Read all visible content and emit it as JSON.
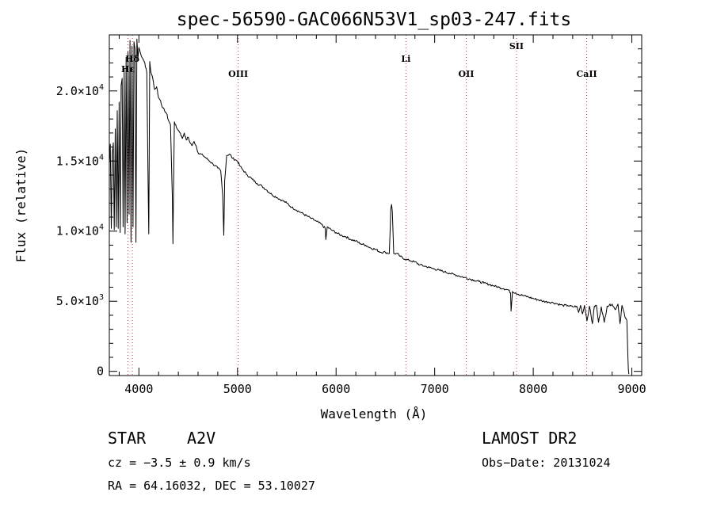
{
  "chart_data": {
    "type": "line",
    "title": "spec-56590-GAC066N53V1_sp03-247.fits",
    "xlabel": "Wavelength (Å)",
    "ylabel": "Flux (relative)",
    "xlim": [
      3700,
      9100
    ],
    "ylim": [
      -300,
      24000
    ],
    "xticks": [
      4000,
      5000,
      6000,
      7000,
      8000,
      9000
    ],
    "xtick_labels": [
      "4000",
      "5000",
      "6000",
      "7000",
      "8000",
      "9000"
    ],
    "yticks": [
      0,
      5000,
      10000,
      15000,
      20000
    ],
    "ytick_labels": [
      {
        "mantissa": "0",
        "exp": ""
      },
      {
        "mantissa": "5.0×10",
        "exp": "3"
      },
      {
        "mantissa": "1.0×10",
        "exp": "4"
      },
      {
        "mantissa": "1.5×10",
        "exp": "4"
      },
      {
        "mantissa": "2.0×10",
        "exp": "4"
      }
    ],
    "grid": false,
    "line_markers": [
      {
        "name": "Hε",
        "wavelength": 3889,
        "label_row": 2
      },
      {
        "name": "Hδ",
        "wavelength": 3934,
        "label_row": 1
      },
      {
        "name": "OIII",
        "wavelength": 5007,
        "label_row": 3
      },
      {
        "name": "Li",
        "wavelength": 6708,
        "label_row": 1
      },
      {
        "name": "OII",
        "wavelength": 7320,
        "label_row": 3
      },
      {
        "name": "SII",
        "wavelength": 7830,
        "label_row": 0
      },
      {
        "name": "CaII",
        "wavelength": 8542,
        "label_row": 3
      }
    ],
    "series": [
      {
        "name": "flux",
        "x": [
          3700,
          3710,
          3720,
          3730,
          3740,
          3750,
          3760,
          3770,
          3780,
          3790,
          3800,
          3810,
          3820,
          3830,
          3840,
          3850,
          3860,
          3870,
          3880,
          3890,
          3900,
          3910,
          3920,
          3930,
          3940,
          3950,
          3960,
          3970,
          3980,
          3990,
          4000,
          4020,
          4040,
          4060,
          4080,
          4100,
          4110,
          4120,
          4140,
          4160,
          4180,
          4200,
          4220,
          4240,
          4260,
          4280,
          4300,
          4320,
          4340,
          4345,
          4350,
          4360,
          4380,
          4400,
          4420,
          4440,
          4460,
          4480,
          4500,
          4520,
          4540,
          4560,
          4580,
          4600,
          4650,
          4700,
          4750,
          4800,
          4830,
          4850,
          4861,
          4870,
          4890,
          4920,
          4950,
          5000,
          5020,
          5050,
          5100,
          5150,
          5200,
          5250,
          5300,
          5350,
          5400,
          5450,
          5500,
          5550,
          5600,
          5650,
          5700,
          5750,
          5800,
          5850,
          5890,
          5896,
          5910,
          5950,
          6000,
          6050,
          6100,
          6150,
          6200,
          6250,
          6300,
          6350,
          6400,
          6450,
          6500,
          6540,
          6555,
          6563,
          6570,
          6585,
          6620,
          6650,
          6700,
          6750,
          6800,
          6850,
          6900,
          6950,
          7000,
          7050,
          7100,
          7150,
          7200,
          7250,
          7300,
          7350,
          7400,
          7450,
          7500,
          7550,
          7600,
          7650,
          7700,
          7750,
          7770,
          7775,
          7790,
          7820,
          7850,
          7900,
          7950,
          8000,
          8050,
          8100,
          8150,
          8200,
          8250,
          8300,
          8350,
          8400,
          8440,
          8460,
          8480,
          8500,
          8520,
          8545,
          8570,
          8600,
          8620,
          8640,
          8662,
          8690,
          8720,
          8750,
          8770,
          8800,
          8830,
          8860,
          8880,
          8900,
          8930,
          8950,
          8960,
          8965,
          8970
        ],
        "y": [
          14800,
          16200,
          10200,
          15500,
          16300,
          10100,
          17300,
          10300,
          18600,
          10200,
          19200,
          9900,
          20400,
          20900,
          10300,
          21600,
          9800,
          22400,
          10600,
          22800,
          11200,
          23600,
          9200,
          23200,
          10300,
          23500,
          23000,
          9200,
          23700,
          22300,
          23100,
          22600,
          22300,
          22000,
          21300,
          9800,
          22100,
          21400,
          20900,
          20100,
          20300,
          19500,
          19300,
          18800,
          18600,
          18400,
          17900,
          17600,
          12300,
          9100,
          12300,
          17800,
          17400,
          17200,
          17000,
          16600,
          17000,
          16500,
          16700,
          16300,
          16100,
          16400,
          16100,
          15600,
          15400,
          15100,
          14800,
          14500,
          14300,
          12500,
          9700,
          13600,
          15400,
          15500,
          15200,
          15000,
          14700,
          14400,
          14000,
          13700,
          13400,
          13200,
          12900,
          12600,
          12400,
          12200,
          12000,
          11700,
          11500,
          11300,
          11100,
          10900,
          10700,
          10500,
          10200,
          9400,
          10300,
          10100,
          9900,
          9700,
          9600,
          9400,
          9300,
          9100,
          9000,
          8800,
          8700,
          8500,
          8500,
          8400,
          11600,
          11900,
          11400,
          8400,
          8400,
          8200,
          8000,
          7900,
          7800,
          7600,
          7500,
          7400,
          7300,
          7200,
          7100,
          7000,
          6900,
          6800,
          6700,
          6600,
          6500,
          6400,
          6300,
          6200,
          6100,
          6000,
          5900,
          5800,
          5600,
          4300,
          5700,
          5600,
          5500,
          5400,
          5300,
          5200,
          5100,
          5000,
          4950,
          4900,
          4800,
          4700,
          4700,
          4600,
          4650,
          4200,
          4700,
          4100,
          4700,
          3600,
          4650,
          3400,
          4650,
          4700,
          3500,
          4600,
          3500,
          4650,
          4700,
          4800,
          4400,
          4800,
          3400,
          4700,
          3900,
          3600,
          1000,
          100,
          -200
        ]
      }
    ]
  },
  "info": {
    "object_type": "STAR",
    "spectral_class": "A2V",
    "redshift": "cz = −3.5 ± 0.9 km/s",
    "coords": "RA =  64.16032, DEC =  53.10027",
    "survey": "LAMOST DR2",
    "obs_date": "Obs−Date: 20131024"
  }
}
